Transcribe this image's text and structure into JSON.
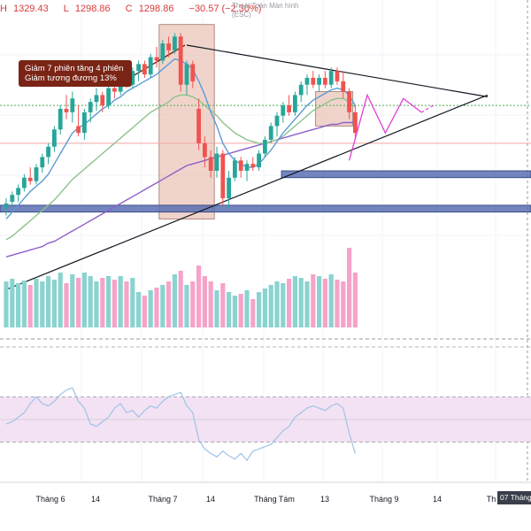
{
  "ohlc": {
    "h_label": "H",
    "high": "1329.43",
    "l_label": "L",
    "low": "1298.86",
    "c_label": "C",
    "close": "1298.86",
    "change": "−30.57 (−2.30%)"
  },
  "fullscreen_hint": {
    "line1": "Thoát Toàn Màn hình",
    "line2": "(ESC)"
  },
  "annotation": {
    "line1": "Giảm 7 phiên tăng 4 phiên",
    "line2": "Giảm tương đương 13%"
  },
  "date_badge": "07 Tháng",
  "colors": {
    "up": "#26a69a",
    "down": "#ef5350",
    "vol_up": "#8ad3d0",
    "vol_down": "#f6a3c9",
    "ma_fast": "#5b9bd5",
    "ma_mid": "#8cc28c",
    "ma_slow": "#8e5fc9",
    "zone_band": "#5a6fb3",
    "box_fill": "#e6b8a8",
    "projection": "#e040d8",
    "rsi_bg": "#f3e2f3",
    "rsi_line": "#9ec3e6",
    "annotation_bg": "#7a2416"
  },
  "chart_data": {
    "type": "candlestick",
    "x_ticks": [
      "Tháng 6",
      "14",
      "Tháng 7",
      "14",
      "Tháng Tám",
      "13",
      "Tháng 9",
      "14",
      "Th"
    ],
    "price_range": [
      1200,
      1345
    ],
    "candles": [
      {
        "o": 1232,
        "h": 1238,
        "l": 1228,
        "c": 1235
      },
      {
        "o": 1236,
        "h": 1242,
        "l": 1233,
        "c": 1240
      },
      {
        "o": 1240,
        "h": 1246,
        "l": 1236,
        "c": 1244
      },
      {
        "o": 1244,
        "h": 1252,
        "l": 1242,
        "c": 1250
      },
      {
        "o": 1250,
        "h": 1256,
        "l": 1246,
        "c": 1248
      },
      {
        "o": 1248,
        "h": 1258,
        "l": 1246,
        "c": 1256
      },
      {
        "o": 1256,
        "h": 1264,
        "l": 1253,
        "c": 1262
      },
      {
        "o": 1262,
        "h": 1270,
        "l": 1258,
        "c": 1268
      },
      {
        "o": 1268,
        "h": 1280,
        "l": 1265,
        "c": 1278
      },
      {
        "o": 1278,
        "h": 1292,
        "l": 1275,
        "c": 1290
      },
      {
        "o": 1290,
        "h": 1298,
        "l": 1284,
        "c": 1288
      },
      {
        "o": 1288,
        "h": 1300,
        "l": 1282,
        "c": 1296
      },
      {
        "o": 1280,
        "h": 1292,
        "l": 1274,
        "c": 1276
      },
      {
        "o": 1276,
        "h": 1290,
        "l": 1272,
        "c": 1288
      },
      {
        "o": 1288,
        "h": 1296,
        "l": 1282,
        "c": 1294
      },
      {
        "o": 1294,
        "h": 1302,
        "l": 1289,
        "c": 1298
      },
      {
        "o": 1298,
        "h": 1300,
        "l": 1288,
        "c": 1292
      },
      {
        "o": 1292,
        "h": 1304,
        "l": 1290,
        "c": 1302
      },
      {
        "o": 1302,
        "h": 1308,
        "l": 1296,
        "c": 1300
      },
      {
        "o": 1300,
        "h": 1310,
        "l": 1298,
        "c": 1308
      },
      {
        "o": 1308,
        "h": 1312,
        "l": 1302,
        "c": 1304
      },
      {
        "o": 1304,
        "h": 1314,
        "l": 1302,
        "c": 1312
      },
      {
        "o": 1312,
        "h": 1318,
        "l": 1306,
        "c": 1316
      },
      {
        "o": 1316,
        "h": 1318,
        "l": 1308,
        "c": 1310
      },
      {
        "o": 1310,
        "h": 1322,
        "l": 1308,
        "c": 1320
      },
      {
        "o": 1320,
        "h": 1326,
        "l": 1314,
        "c": 1318
      },
      {
        "o": 1318,
        "h": 1330,
        "l": 1316,
        "c": 1328
      },
      {
        "o": 1328,
        "h": 1332,
        "l": 1320,
        "c": 1324
      },
      {
        "o": 1324,
        "h": 1334,
        "l": 1322,
        "c": 1332
      },
      {
        "o": 1332,
        "h": 1334,
        "l": 1300,
        "c": 1304
      },
      {
        "o": 1304,
        "h": 1318,
        "l": 1298,
        "c": 1316
      },
      {
        "o": 1316,
        "h": 1318,
        "l": 1302,
        "c": 1306
      },
      {
        "o": 1290,
        "h": 1296,
        "l": 1266,
        "c": 1270
      },
      {
        "o": 1270,
        "h": 1274,
        "l": 1256,
        "c": 1262
      },
      {
        "o": 1262,
        "h": 1266,
        "l": 1250,
        "c": 1254
      },
      {
        "o": 1254,
        "h": 1268,
        "l": 1250,
        "c": 1264
      },
      {
        "o": 1264,
        "h": 1266,
        "l": 1234,
        "c": 1238
      },
      {
        "o": 1238,
        "h": 1254,
        "l": 1232,
        "c": 1250
      },
      {
        "o": 1250,
        "h": 1262,
        "l": 1248,
        "c": 1260
      },
      {
        "o": 1260,
        "h": 1262,
        "l": 1250,
        "c": 1254
      },
      {
        "o": 1254,
        "h": 1260,
        "l": 1248,
        "c": 1258
      },
      {
        "o": 1258,
        "h": 1262,
        "l": 1254,
        "c": 1256
      },
      {
        "o": 1256,
        "h": 1266,
        "l": 1254,
        "c": 1264
      },
      {
        "o": 1264,
        "h": 1274,
        "l": 1262,
        "c": 1272
      },
      {
        "o": 1272,
        "h": 1282,
        "l": 1270,
        "c": 1280
      },
      {
        "o": 1280,
        "h": 1288,
        "l": 1274,
        "c": 1286
      },
      {
        "o": 1286,
        "h": 1294,
        "l": 1282,
        "c": 1292
      },
      {
        "o": 1292,
        "h": 1298,
        "l": 1286,
        "c": 1288
      },
      {
        "o": 1288,
        "h": 1300,
        "l": 1286,
        "c": 1298
      },
      {
        "o": 1298,
        "h": 1306,
        "l": 1294,
        "c": 1304
      },
      {
        "o": 1304,
        "h": 1310,
        "l": 1298,
        "c": 1308
      },
      {
        "o": 1308,
        "h": 1312,
        "l": 1302,
        "c": 1304
      },
      {
        "o": 1304,
        "h": 1310,
        "l": 1300,
        "c": 1308
      },
      {
        "o": 1308,
        "h": 1312,
        "l": 1302,
        "c": 1304
      },
      {
        "o": 1304,
        "h": 1314,
        "l": 1302,
        "c": 1312
      },
      {
        "o": 1312,
        "h": 1314,
        "l": 1304,
        "c": 1306
      },
      {
        "o": 1306,
        "h": 1312,
        "l": 1296,
        "c": 1300
      },
      {
        "o": 1300,
        "h": 1302,
        "l": 1284,
        "c": 1288
      },
      {
        "o": 1288,
        "h": 1292,
        "l": 1272,
        "c": 1276
      }
    ],
    "ma_fast": [
      1226,
      1230,
      1234,
      1238,
      1242,
      1245,
      1248,
      1252,
      1258,
      1264,
      1270,
      1276,
      1279,
      1281,
      1284,
      1287,
      1290,
      1292,
      1295,
      1297,
      1300,
      1302,
      1304,
      1306,
      1308,
      1310,
      1313,
      1316,
      1319,
      1318,
      1316,
      1313,
      1306,
      1298,
      1288,
      1280,
      1270,
      1264,
      1260,
      1258,
      1256,
      1256,
      1258,
      1262,
      1266,
      1271,
      1276,
      1280,
      1284,
      1288,
      1292,
      1295,
      1297,
      1299,
      1301,
      1302,
      1301,
      1298,
      1292
    ],
    "ma_mid": [
      1214,
      1216,
      1219,
      1222,
      1225,
      1228,
      1231,
      1234,
      1237,
      1241,
      1245,
      1249,
      1252,
      1255,
      1258,
      1261,
      1264,
      1267,
      1270,
      1273,
      1276,
      1279,
      1282,
      1285,
      1288,
      1290,
      1292,
      1294,
      1297,
      1298,
      1298,
      1297,
      1295,
      1292,
      1289,
      1286,
      1282,
      1279,
      1276,
      1274,
      1272,
      1271,
      1270,
      1270,
      1271,
      1272,
      1274,
      1277,
      1280,
      1283,
      1286,
      1289,
      1291,
      1293,
      1295,
      1296,
      1296,
      1294,
      1291
    ],
    "ma_slow": [
      1204,
      1205,
      1206,
      1207,
      1208,
      1209,
      1210,
      1212,
      1213,
      1215,
      1217,
      1219,
      1221,
      1223,
      1225,
      1227,
      1229,
      1231,
      1233,
      1235,
      1237,
      1239,
      1241,
      1243,
      1245,
      1247,
      1249,
      1251,
      1253,
      1255,
      1257,
      1258,
      1259,
      1260,
      1261,
      1262,
      1263,
      1264,
      1265,
      1266,
      1267,
      1268,
      1269,
      1270,
      1271,
      1272,
      1273,
      1274,
      1275,
      1276,
      1277,
      1278,
      1279,
      1280,
      1281,
      1281,
      1282,
      1282,
      1282
    ],
    "volume": [
      52,
      55,
      50,
      53,
      48,
      55,
      52,
      58,
      54,
      62,
      50,
      60,
      56,
      62,
      58,
      52,
      56,
      58,
      54,
      58,
      52,
      56,
      40,
      36,
      42,
      45,
      48,
      52,
      60,
      64,
      48,
      52,
      70,
      58,
      52,
      42,
      50,
      40,
      36,
      38,
      42,
      32,
      40,
      44,
      48,
      52,
      50,
      55,
      58,
      56,
      52,
      60,
      58,
      55,
      60,
      54,
      52,
      90,
      62
    ],
    "volume_max": 100,
    "rsi": [
      46,
      48,
      52,
      56,
      64,
      70,
      64,
      62,
      66,
      72,
      76,
      78,
      66,
      60,
      46,
      44,
      48,
      52,
      60,
      64,
      56,
      58,
      52,
      58,
      62,
      60,
      66,
      70,
      72,
      74,
      62,
      56,
      32,
      24,
      20,
      17,
      22,
      18,
      15,
      20,
      14,
      22,
      24,
      26,
      28,
      34,
      40,
      44,
      52,
      56,
      60,
      62,
      60,
      58,
      62,
      64,
      60,
      38,
      20
    ],
    "rsi_range": [
      0,
      100
    ],
    "horizontal_levels": [
      1292,
      1270
    ],
    "support_zones": [
      [
        1254,
        1250
      ],
      [
        1234,
        1230
      ]
    ],
    "triangle": {
      "upper": [
        [
          30,
          1327
        ],
        [
          80,
          1297
        ]
      ],
      "lower": [
        [
          0,
          1185
        ],
        [
          80,
          1298
        ]
      ]
    },
    "highlight_boxes": [
      [
        26,
        34,
        1339,
        1226
      ],
      [
        52,
        57,
        1300,
        1280
      ]
    ],
    "projection_path": [
      [
        57,
        1260
      ],
      [
        60,
        1298
      ],
      [
        63,
        1276
      ],
      [
        66,
        1296
      ],
      [
        69,
        1288
      ]
    ],
    "projection_tail": [
      [
        69,
        1288
      ],
      [
        71,
        1292
      ]
    ]
  }
}
